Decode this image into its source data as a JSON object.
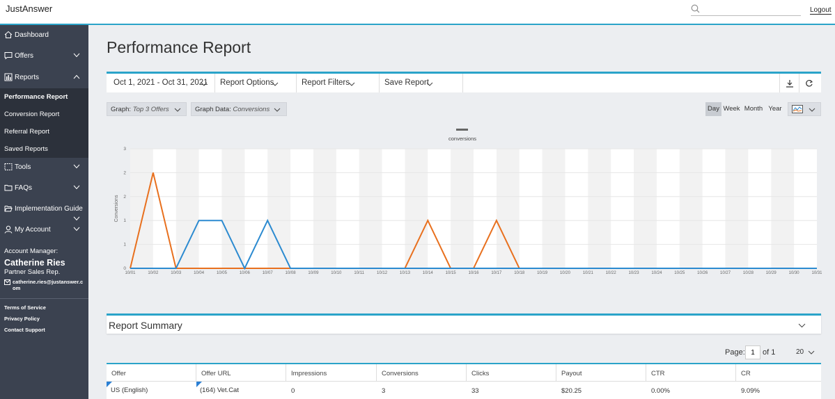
{
  "app": {
    "brand": "JustAnswer",
    "logout_label": "Logout",
    "search_placeholder": ""
  },
  "sidebar": {
    "items": [
      {
        "label": "Dashboard",
        "icon": "home-icon"
      },
      {
        "label": "Offers",
        "icon": "chat-bubble-icon"
      },
      {
        "label": "Reports",
        "icon": "bar-chart-icon"
      },
      {
        "label": "Tools",
        "icon": "toolbox-icon"
      },
      {
        "label": "FAQs",
        "icon": "folder-icon"
      },
      {
        "label": "Implementation Guide",
        "icon": "folder-open-icon"
      },
      {
        "label": "My Account",
        "icon": "user-icon"
      }
    ],
    "reports_sub": [
      "Performance Report",
      "Conversion Report",
      "Referral Report",
      "Saved Reports"
    ],
    "account": {
      "title": "Account Manager:",
      "name": "Catherine Ries",
      "role": "Partner Sales Rep.",
      "email": "catherine.ries@justanswer.com"
    },
    "footer_links": [
      "Terms of Service",
      "Privacy Policy",
      "Contact Support"
    ]
  },
  "page": {
    "title": "Performance Report"
  },
  "toolbar": {
    "date_range": "Oct 1, 2021 - Oct 31, 2021",
    "report_options": "Report Options",
    "report_filters": "Report Filters",
    "save_report": "Save Report"
  },
  "graph_controls": {
    "graph_label": "Graph:",
    "graph_value": "Top 3 Offers",
    "data_label": "Graph Data:",
    "data_value": "Conversions",
    "periods": [
      "Day",
      "Week",
      "Month",
      "Year"
    ],
    "active_period": "Day"
  },
  "chart_data": {
    "type": "line",
    "legend": [
      "conversions"
    ],
    "legend_placement": "top-center",
    "ylabel": "Conversions",
    "y_tick_labels": [
      "0",
      "1",
      "1",
      "2",
      "2",
      "3"
    ],
    "ylim": [
      0,
      2.5
    ],
    "grid": true,
    "categories": [
      "10/01",
      "10/02",
      "10/03",
      "10/04",
      "10/05",
      "10/06",
      "10/07",
      "10/08",
      "10/09",
      "10/10",
      "10/11",
      "10/12",
      "10/13",
      "10/14",
      "10/15",
      "10/16",
      "10/17",
      "10/18",
      "10/19",
      "10/20",
      "10/21",
      "10/22",
      "10/23",
      "10/24",
      "10/25",
      "10/26",
      "10/27",
      "10/28",
      "10/29",
      "10/30",
      "10/31"
    ],
    "series": [
      {
        "color": "#e8701e",
        "values": [
          0,
          2,
          0,
          0,
          0,
          0,
          0,
          0,
          0,
          0,
          0,
          0,
          0,
          1,
          0,
          0,
          1,
          0,
          0,
          0,
          0,
          0,
          0,
          0,
          0,
          0,
          0,
          0,
          0,
          0,
          0
        ]
      },
      {
        "color": "#2b8ad0",
        "values": [
          0,
          0,
          0,
          1,
          1,
          0,
          1,
          0,
          0,
          0,
          0,
          0,
          0,
          0,
          0,
          0,
          0,
          0,
          0,
          0,
          0,
          0,
          0,
          0,
          0,
          0,
          0,
          0,
          0,
          0,
          0
        ]
      }
    ]
  },
  "summary": {
    "title": "Report Summary",
    "page_label": "Page:",
    "page_value": "1",
    "page_of": "of 1",
    "page_size": "20",
    "columns": [
      "Offer",
      "Offer URL",
      "Impressions",
      "Conversions",
      "Clicks",
      "Payout",
      "CTR",
      "CR"
    ],
    "rows": [
      [
        "US (English)",
        "(164) Vet.Cat",
        "0",
        "3",
        "33",
        "$20.25",
        "0.00%",
        "9.09%"
      ]
    ]
  },
  "colors": {
    "accent": "#2aa3c9",
    "sidebar": "#3b4250",
    "sidebar_sub": "#2c313b",
    "orange": "#e8701e",
    "blue": "#2b8ad0"
  }
}
